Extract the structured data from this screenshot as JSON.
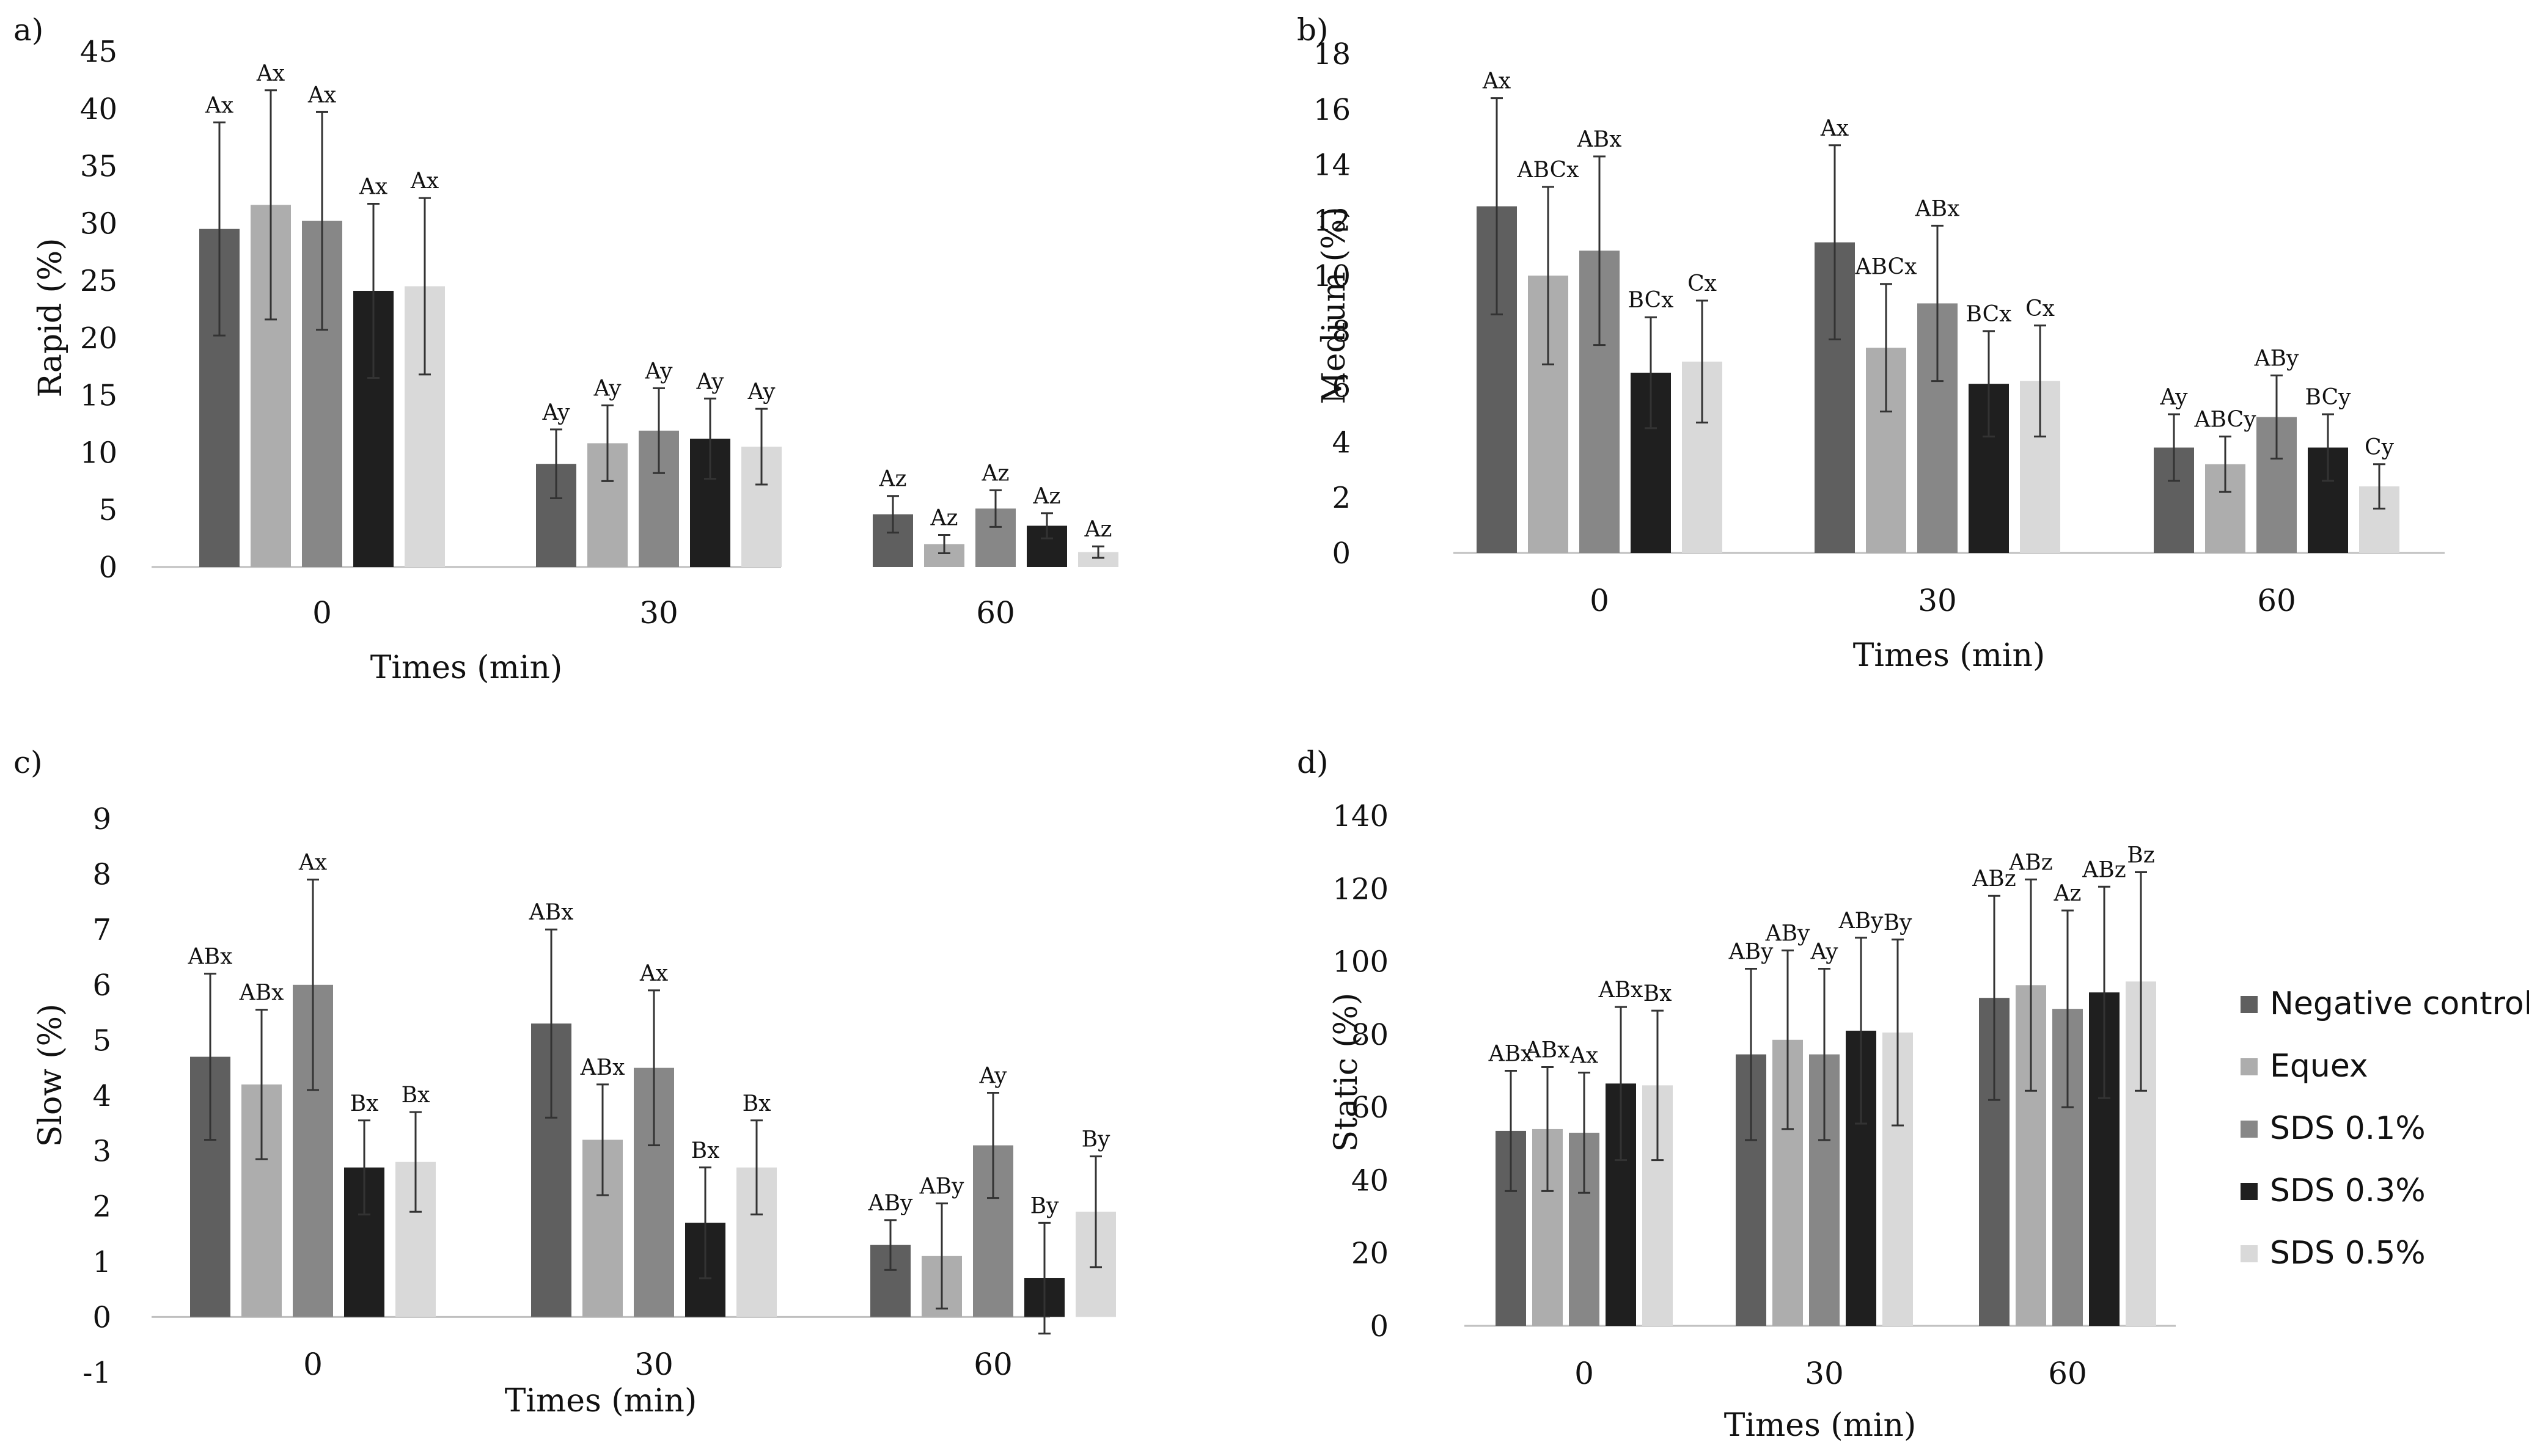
{
  "colors": {
    "series": [
      "#5f5f5f",
      "#adadad",
      "#878787",
      "#1f1f1f",
      "#d9d9d9"
    ],
    "axis": "#bfbfbf",
    "errorbar": "#333333"
  },
  "legend": {
    "items": [
      "Negative control",
      "Equex",
      "SDS 0.1%",
      "SDS 0.3%",
      "SDS 0.5%"
    ]
  },
  "chart_data": [
    {
      "panel": "a)",
      "type": "bar",
      "ylabel": "Rapid (%)",
      "xlabel": "Times (min)",
      "categories": [
        "0",
        "30",
        "60"
      ],
      "ylim": [
        0,
        45
      ],
      "yticks": [
        "0",
        "5",
        "10",
        "15",
        "20",
        "25",
        "30",
        "35",
        "40",
        "45"
      ],
      "series": [
        {
          "name": "Negative control",
          "values": [
            29.5,
            9.0,
            4.6
          ],
          "errors": [
            9.3,
            3.0,
            1.6
          ],
          "labels": [
            "Ax",
            "Ay",
            "Az"
          ]
        },
        {
          "name": "Equex",
          "values": [
            31.6,
            10.8,
            2.0
          ],
          "errors": [
            10.0,
            3.3,
            0.8
          ],
          "labels": [
            "Ax",
            "Ay",
            "Az"
          ]
        },
        {
          "name": "SDS 0.1%",
          "values": [
            30.2,
            11.9,
            5.1
          ],
          "errors": [
            9.5,
            3.7,
            1.6
          ],
          "labels": [
            "Ax",
            "Ay",
            "Az"
          ]
        },
        {
          "name": "SDS 0.3%",
          "values": [
            24.1,
            11.2,
            3.6
          ],
          "errors": [
            7.6,
            3.5,
            1.1
          ],
          "labels": [
            "Ax",
            "Ay",
            "Az"
          ]
        },
        {
          "name": "SDS 0.5%",
          "values": [
            24.5,
            10.5,
            1.3
          ],
          "errors": [
            7.7,
            3.3,
            0.5
          ],
          "labels": [
            "Ax",
            "Ay",
            "Az"
          ]
        }
      ]
    },
    {
      "panel": "b)",
      "type": "bar",
      "ylabel": "Medium (%)",
      "xlabel": "Times (min)",
      "categories": [
        "0",
        "30",
        "60"
      ],
      "ylim": [
        0,
        18
      ],
      "yticks": [
        "0",
        "2",
        "4",
        "6",
        "8",
        "10",
        "12",
        "14",
        "16",
        "18"
      ],
      "series": [
        {
          "name": "Negative control",
          "values": [
            12.5,
            11.2,
            3.8
          ],
          "errors": [
            3.9,
            3.5,
            1.2
          ],
          "labels": [
            "Ax",
            "Ax",
            "Ay"
          ]
        },
        {
          "name": "Equex",
          "values": [
            10.0,
            7.4,
            3.2
          ],
          "errors": [
            3.2,
            2.3,
            1.0
          ],
          "labels": [
            "ABCx",
            "ABCx",
            "ABCy"
          ]
        },
        {
          "name": "SDS 0.1%",
          "values": [
            10.9,
            9.0,
            4.9
          ],
          "errors": [
            3.4,
            2.8,
            1.5
          ],
          "labels": [
            "ABx",
            "ABx",
            "ABy"
          ]
        },
        {
          "name": "SDS 0.3%",
          "values": [
            6.5,
            6.1,
            3.8
          ],
          "errors": [
            2.0,
            1.9,
            1.2
          ],
          "labels": [
            "BCx",
            "BCx",
            "BCy"
          ]
        },
        {
          "name": "SDS 0.5%",
          "values": [
            6.9,
            6.2,
            2.4
          ],
          "errors": [
            2.2,
            2.0,
            0.8
          ],
          "labels": [
            "Cx",
            "Cx",
            "Cy"
          ]
        }
      ]
    },
    {
      "panel": "c)",
      "type": "bar",
      "ylabel": "Slow (%)",
      "xlabel": "Times (min)",
      "categories": [
        "0",
        "30",
        "60"
      ],
      "ylim": [
        -1,
        9
      ],
      "yticks": [
        "-1",
        "0",
        "1",
        "2",
        "3",
        "4",
        "5",
        "6",
        "7",
        "8",
        "9"
      ],
      "series": [
        {
          "name": "Negative control",
          "values": [
            4.7,
            5.3,
            1.3
          ],
          "errors": [
            1.5,
            1.7,
            0.45
          ],
          "labels": [
            "ABx",
            "ABx",
            "ABy"
          ]
        },
        {
          "name": "Equex",
          "values": [
            4.2,
            3.2,
            1.1
          ],
          "errors": [
            1.35,
            1.0,
            0.95
          ],
          "labels": [
            "ABx",
            "ABx",
            "ABy"
          ]
        },
        {
          "name": "SDS 0.1%",
          "values": [
            6.0,
            4.5,
            3.1
          ],
          "errors": [
            1.9,
            1.4,
            0.95
          ],
          "labels": [
            "Ax",
            "Ax",
            "Ay"
          ]
        },
        {
          "name": "SDS 0.3%",
          "values": [
            2.7,
            1.7,
            0.7
          ],
          "errors": [
            0.85,
            1.0,
            1.0
          ],
          "labels": [
            "Bx",
            "Bx",
            "By"
          ]
        },
        {
          "name": "SDS 0.5%",
          "values": [
            2.8,
            2.7,
            1.9
          ],
          "errors": [
            0.9,
            0.85,
            1.0
          ],
          "labels": [
            "Bx",
            "Bx",
            "By"
          ]
        }
      ]
    },
    {
      "panel": "d)",
      "type": "bar",
      "ylabel": "Static (%)",
      "xlabel": "Times (min)",
      "categories": [
        "0",
        "30",
        "60"
      ],
      "ylim": [
        0,
        140
      ],
      "yticks": [
        "0",
        "20",
        "40",
        "60",
        "80",
        "100",
        "120",
        "140"
      ],
      "series": [
        {
          "name": "Negative control",
          "values": [
            53.5,
            74.5,
            90.0
          ],
          "errors": [
            16.5,
            23.5,
            28.0
          ],
          "labels": [
            "ABx",
            "ABy",
            "ABz"
          ]
        },
        {
          "name": "Equex",
          "values": [
            54.0,
            78.5,
            93.5
          ],
          "errors": [
            17.0,
            24.5,
            29.0
          ],
          "labels": [
            "ABx",
            "ABy",
            "ABz"
          ]
        },
        {
          "name": "SDS 0.1%",
          "values": [
            53.0,
            74.5,
            87.0
          ],
          "errors": [
            16.5,
            23.5,
            27.0
          ],
          "labels": [
            "Ax",
            "Ay",
            "Az"
          ]
        },
        {
          "name": "SDS 0.3%",
          "values": [
            66.5,
            81.0,
            91.5
          ],
          "errors": [
            21.0,
            25.5,
            29.0
          ],
          "labels": [
            "ABx",
            "ABy",
            "ABz"
          ]
        },
        {
          "name": "SDS 0.5%",
          "values": [
            66.0,
            80.5,
            94.5
          ],
          "errors": [
            20.5,
            25.5,
            30.0
          ],
          "labels": [
            "Bx",
            "By",
            "Bz"
          ]
        }
      ]
    }
  ]
}
